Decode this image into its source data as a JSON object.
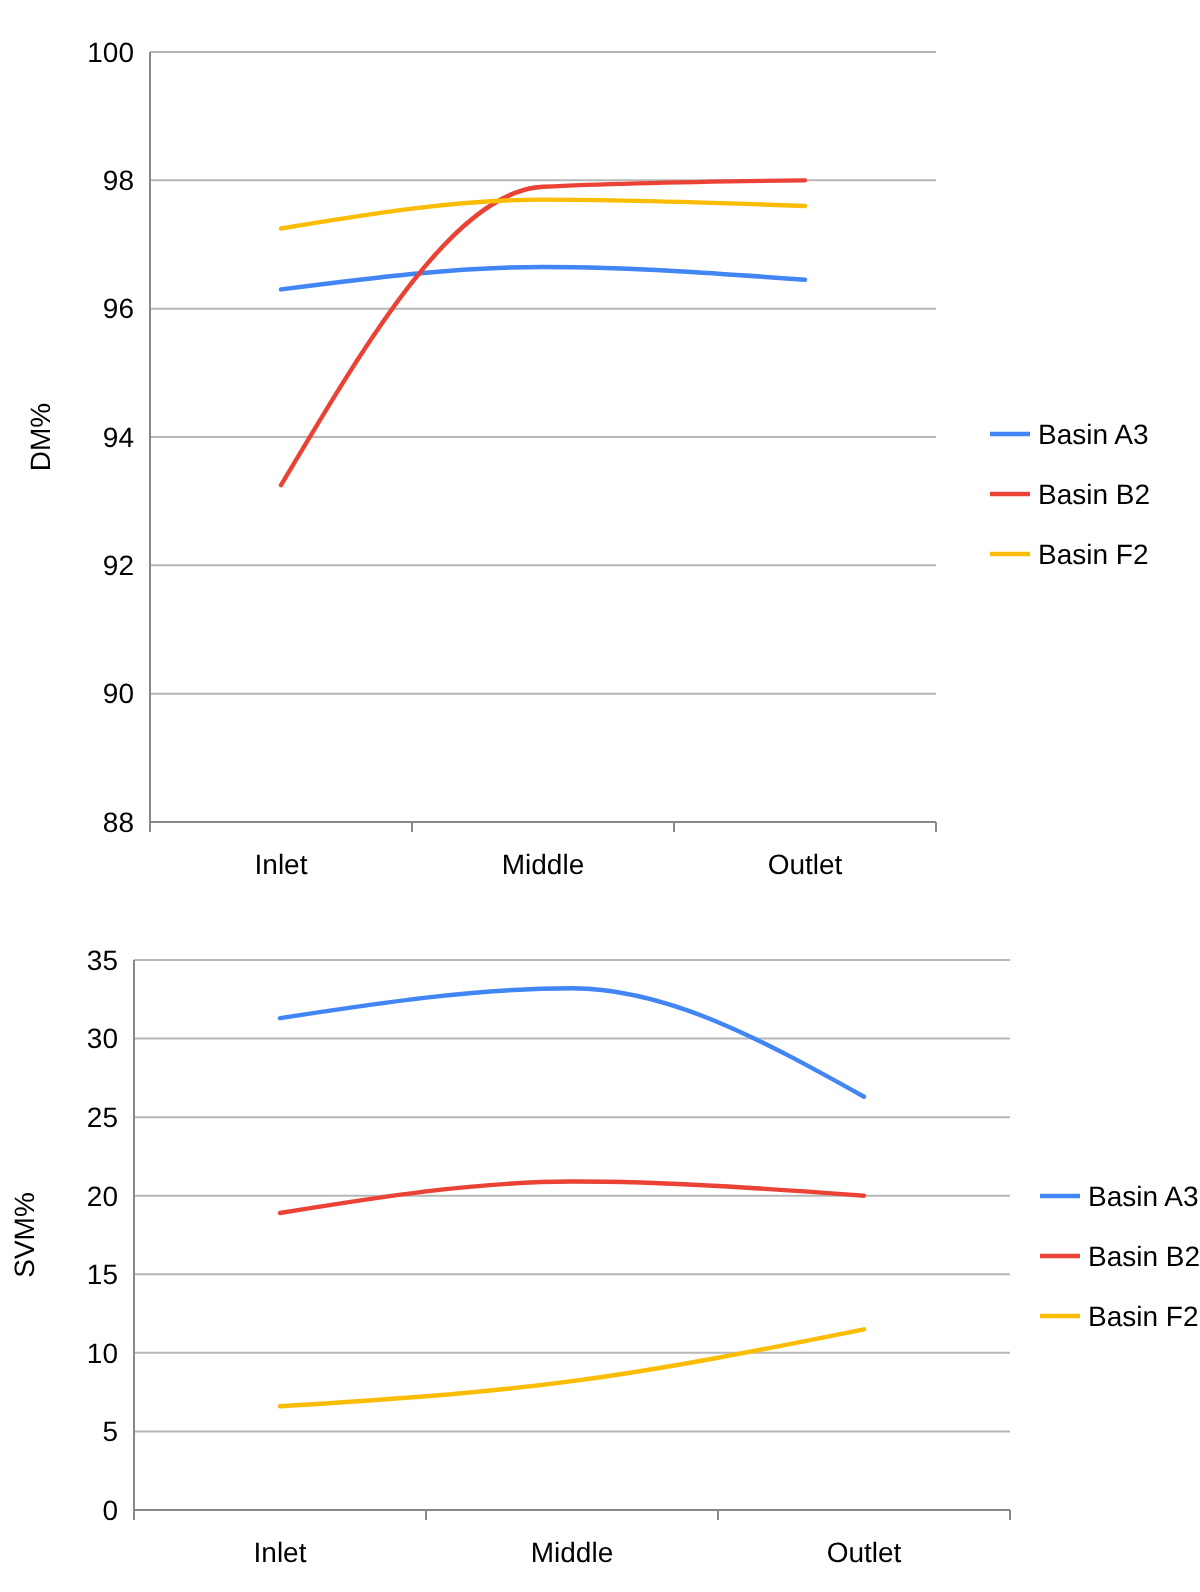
{
  "chart_data": [
    {
      "type": "line",
      "ylabel": "DM%",
      "categories": [
        "Inlet",
        "Middle",
        "Outlet"
      ],
      "ylim": [
        88,
        100
      ],
      "yticks": [
        88,
        90,
        92,
        94,
        96,
        98,
        100
      ],
      "grid": "y",
      "legend": "right",
      "marker": "none",
      "series": [
        {
          "name": "Basin A3",
          "color": "#4285f4",
          "values": [
            96.3,
            96.65,
            96.45
          ]
        },
        {
          "name": "Basin B2",
          "color": "#ea4335",
          "values": [
            93.25,
            97.9,
            98.0
          ]
        },
        {
          "name": "Basin F2",
          "color": "#fbbc04",
          "values": [
            97.25,
            97.7,
            97.6
          ]
        }
      ]
    },
    {
      "type": "line",
      "ylabel": "SVM%",
      "categories": [
        "Inlet",
        "Middle",
        "Outlet"
      ],
      "ylim": [
        0,
        35
      ],
      "yticks": [
        0,
        5,
        10,
        15,
        20,
        25,
        30,
        35
      ],
      "grid": "y",
      "legend": "right",
      "marker": "none",
      "series": [
        {
          "name": "Basin A3",
          "color": "#4285f4",
          "values": [
            31.3,
            33.2,
            26.3
          ]
        },
        {
          "name": "Basin B2",
          "color": "#ea4335",
          "values": [
            18.9,
            20.9,
            20.0
          ]
        },
        {
          "name": "Basin F2",
          "color": "#fbbc04",
          "values": [
            6.6,
            8.2,
            11.5
          ]
        }
      ]
    }
  ]
}
